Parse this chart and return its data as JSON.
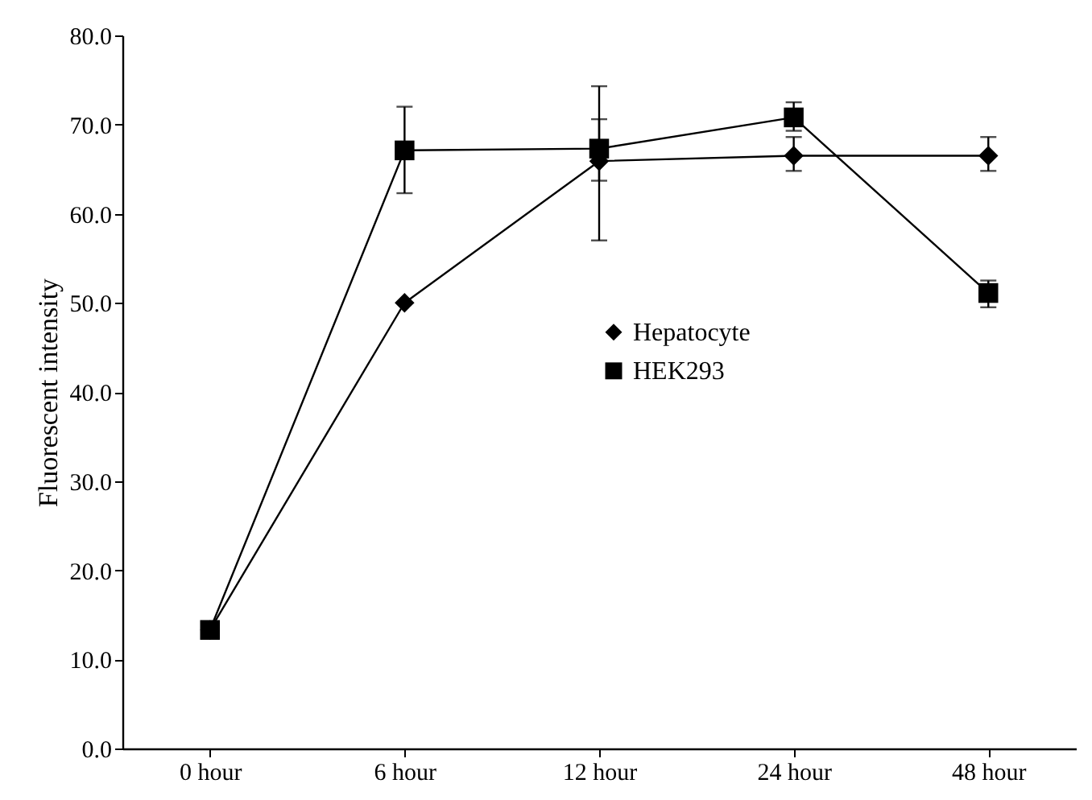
{
  "chart_data": {
    "type": "line",
    "ylabel": "Fluorescent intensity",
    "categories": [
      "0 hour",
      "6 hour",
      "12 hour",
      "24 hour",
      "48 hour"
    ],
    "series": [
      {
        "name": "Hepatocyte",
        "color": "#000000",
        "marker": "diamond",
        "values": [
          13.3,
          50.0,
          65.9,
          66.5,
          66.5
        ],
        "errors": [
          null,
          null,
          [
            57.0,
            70.6
          ],
          [
            64.8,
            68.6
          ],
          [
            64.8,
            68.6
          ]
        ]
      },
      {
        "name": "HEK293",
        "color": "#000000",
        "marker": "square",
        "values": [
          13.3,
          67.1,
          67.3,
          70.8,
          51.1
        ],
        "errors": [
          null,
          [
            62.3,
            72.0
          ],
          [
            63.7,
            74.3
          ],
          [
            69.3,
            72.5
          ],
          [
            49.5,
            52.5
          ]
        ]
      }
    ],
    "ylim": [
      0,
      80
    ],
    "yticks": [
      {
        "value": 0,
        "label": "0.0"
      },
      {
        "value": 10,
        "label": "10.0"
      },
      {
        "value": 20,
        "label": "20.0"
      },
      {
        "value": 30,
        "label": "30.0"
      },
      {
        "value": 40,
        "label": "40.0"
      },
      {
        "value": 50,
        "label": "50.0"
      },
      {
        "value": 60,
        "label": "60.0"
      },
      {
        "value": 70,
        "label": "70.0"
      },
      {
        "value": 80,
        "label": "80.0"
      }
    ],
    "grid": false,
    "legend": "center",
    "line_style": "solid"
  }
}
